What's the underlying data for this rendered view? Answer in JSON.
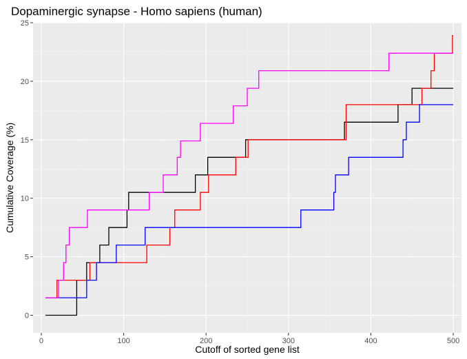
{
  "chart_data": {
    "type": "line",
    "title": "Dopaminergic synapse - Homo sapiens (human)",
    "xlabel": "Cutoff of sorted gene list",
    "ylabel": "Cumulative Coverage (%)",
    "xlim": [
      -10,
      510
    ],
    "ylim": [
      -1.5,
      25
    ],
    "x_ticks": [
      0,
      100,
      200,
      300,
      400,
      500
    ],
    "y_ticks": [
      0,
      5,
      10,
      15,
      20,
      25
    ],
    "grid": true,
    "legend": "none",
    "step": true,
    "series": [
      {
        "color": "#000000",
        "points": [
          [
            5,
            0
          ],
          [
            43,
            0
          ],
          [
            43,
            3
          ],
          [
            55,
            3
          ],
          [
            55,
            4.5
          ],
          [
            71,
            4.5
          ],
          [
            71,
            6
          ],
          [
            82,
            6
          ],
          [
            82,
            7.5
          ],
          [
            104,
            7.5
          ],
          [
            104,
            9
          ],
          [
            106,
            9
          ],
          [
            106,
            10.5
          ],
          [
            187,
            10.5
          ],
          [
            187,
            12
          ],
          [
            202,
            12
          ],
          [
            202,
            13.5
          ],
          [
            248,
            13.5
          ],
          [
            248,
            15
          ],
          [
            368,
            15
          ],
          [
            368,
            16.5
          ],
          [
            433,
            16.5
          ],
          [
            433,
            18
          ],
          [
            450,
            18
          ],
          [
            450,
            19.4
          ],
          [
            500,
            19.4
          ]
        ]
      },
      {
        "color": "#ff0000",
        "points": [
          [
            5,
            1.5
          ],
          [
            19,
            1.5
          ],
          [
            19,
            3
          ],
          [
            59,
            3
          ],
          [
            59,
            4.5
          ],
          [
            128,
            4.5
          ],
          [
            128,
            6
          ],
          [
            156,
            6
          ],
          [
            156,
            7.5
          ],
          [
            162,
            7.5
          ],
          [
            162,
            9
          ],
          [
            193,
            9
          ],
          [
            193,
            10.5
          ],
          [
            203,
            10.5
          ],
          [
            203,
            12
          ],
          [
            236,
            12
          ],
          [
            236,
            13.5
          ],
          [
            251,
            13.5
          ],
          [
            251,
            15
          ],
          [
            370,
            15
          ],
          [
            370,
            18
          ],
          [
            462,
            18
          ],
          [
            462,
            19.4
          ],
          [
            473,
            19.4
          ],
          [
            473,
            20.9
          ],
          [
            477,
            20.9
          ],
          [
            477,
            22.4
          ],
          [
            499,
            22.4
          ],
          [
            499,
            23.9
          ],
          [
            500,
            23.9
          ]
        ]
      },
      {
        "color": "#0000ff",
        "points": [
          [
            5,
            1.5
          ],
          [
            55,
            1.5
          ],
          [
            55,
            3
          ],
          [
            67,
            3
          ],
          [
            67,
            4.5
          ],
          [
            91,
            4.5
          ],
          [
            91,
            6
          ],
          [
            126,
            6
          ],
          [
            126,
            7.5
          ],
          [
            315,
            7.5
          ],
          [
            315,
            9
          ],
          [
            355,
            9
          ],
          [
            355,
            10.5
          ],
          [
            357,
            10.5
          ],
          [
            357,
            12
          ],
          [
            373,
            12
          ],
          [
            373,
            13.5
          ],
          [
            439,
            13.5
          ],
          [
            439,
            15
          ],
          [
            443,
            15
          ],
          [
            443,
            16.5
          ],
          [
            459,
            16.5
          ],
          [
            459,
            18
          ],
          [
            500,
            18
          ]
        ]
      },
      {
        "color": "#ff00ff",
        "points": [
          [
            5,
            1.5
          ],
          [
            21,
            1.5
          ],
          [
            21,
            3
          ],
          [
            27,
            3
          ],
          [
            27,
            4.5
          ],
          [
            30,
            4.5
          ],
          [
            30,
            6
          ],
          [
            34,
            6
          ],
          [
            34,
            7.5
          ],
          [
            56,
            7.5
          ],
          [
            56,
            9
          ],
          [
            131,
            9
          ],
          [
            131,
            10.5
          ],
          [
            148,
            10.5
          ],
          [
            148,
            12
          ],
          [
            165,
            12
          ],
          [
            165,
            13.5
          ],
          [
            169,
            13.5
          ],
          [
            169,
            14.9
          ],
          [
            193,
            14.9
          ],
          [
            193,
            16.4
          ],
          [
            233,
            16.4
          ],
          [
            233,
            17.9
          ],
          [
            250,
            17.9
          ],
          [
            250,
            19.4
          ],
          [
            264,
            19.4
          ],
          [
            264,
            20.9
          ],
          [
            422,
            20.9
          ],
          [
            422,
            22.4
          ],
          [
            500,
            22.4
          ]
        ]
      }
    ]
  }
}
